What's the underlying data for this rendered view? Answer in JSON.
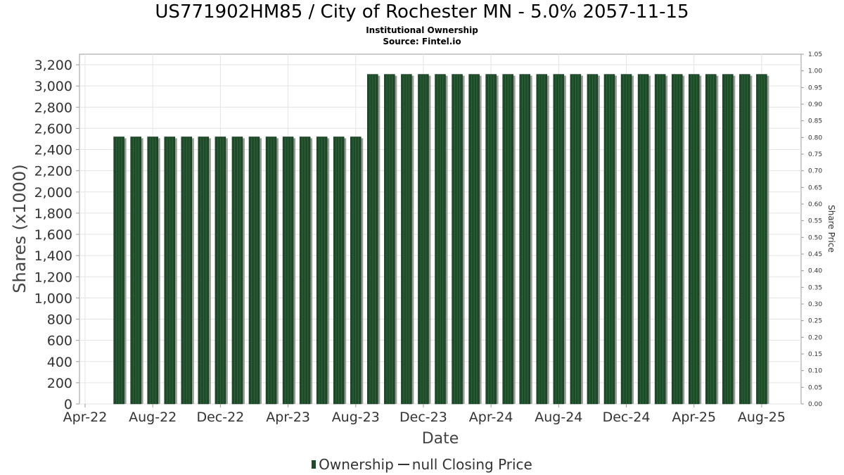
{
  "title": "US771902HM85 / City of Rochester MN - 5.0% 2057-11-15",
  "subtitle": "Institutional Ownership",
  "source": "Source: Fintel.io",
  "legend": {
    "ownership_label": "Ownership",
    "price_label": "null Closing Price"
  },
  "colors": {
    "bar": "#1e4a2a",
    "bar_shadow": "#9a9a9a",
    "grid": "#e3e3e3"
  },
  "chart_data": {
    "type": "bar",
    "xlabel": "Date",
    "ylabel": "Shares (x1000)",
    "y2label": "Share Price",
    "ylim": [
      0,
      3300
    ],
    "y_ticks": [
      0,
      200,
      400,
      600,
      800,
      1000,
      1200,
      1400,
      1600,
      1800,
      2000,
      2200,
      2400,
      2600,
      2800,
      3000,
      3200
    ],
    "y_tick_labels": [
      "0",
      "200",
      "400",
      "600",
      "800",
      "1,000",
      "1,200",
      "1,400",
      "1,600",
      "1,800",
      "2,000",
      "2,200",
      "2,400",
      "2,600",
      "2,800",
      "3,000",
      "3,200"
    ],
    "y2lim": [
      0,
      1.05
    ],
    "y2_tick_labels": [
      "0.00",
      "0.05",
      "0.10",
      "0.15",
      "0.20",
      "0.25",
      "0.30",
      "0.35",
      "0.40",
      "0.45",
      "0.50",
      "0.55",
      "0.60",
      "0.65",
      "0.70",
      "0.75",
      "0.80",
      "0.85",
      "0.90",
      "0.95",
      "1.00",
      "1.05"
    ],
    "x_tick_labels": [
      "Apr-22",
      "Aug-22",
      "Dec-22",
      "Apr-23",
      "Aug-23",
      "Dec-23",
      "Apr-24",
      "Aug-24",
      "Dec-24",
      "Apr-25",
      "Aug-25"
    ],
    "x_start": "2022-04",
    "x_end": "2025-10",
    "grid": true,
    "legend_position": "bottom",
    "series": [
      {
        "name": "Ownership",
        "x": [
          "2022-06",
          "2022-07",
          "2022-08",
          "2022-09",
          "2022-10",
          "2022-11",
          "2022-12",
          "2023-01",
          "2023-02",
          "2023-03",
          "2023-04",
          "2023-05",
          "2023-06",
          "2023-07",
          "2023-08",
          "2023-09",
          "2023-10",
          "2023-11",
          "2023-12",
          "2024-01",
          "2024-02",
          "2024-03",
          "2024-04",
          "2024-05",
          "2024-06",
          "2024-07",
          "2024-08",
          "2024-09",
          "2024-10",
          "2024-11",
          "2024-12",
          "2025-01",
          "2025-02",
          "2025-03",
          "2025-04",
          "2025-05",
          "2025-06",
          "2025-07",
          "2025-08"
        ],
        "values": [
          2520,
          2520,
          2520,
          2520,
          2520,
          2520,
          2520,
          2520,
          2520,
          2520,
          2520,
          2520,
          2520,
          2520,
          2520,
          3110,
          3110,
          3110,
          3110,
          3110,
          3110,
          3110,
          3110,
          3110,
          3110,
          3110,
          3110,
          3110,
          3110,
          3110,
          3110,
          3110,
          3110,
          3110,
          3110,
          3110,
          3110,
          3110,
          3110
        ]
      }
    ]
  }
}
